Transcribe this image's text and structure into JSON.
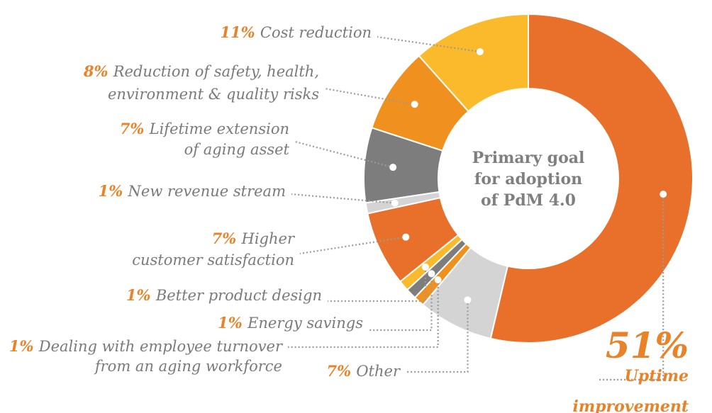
{
  "chart_data": {
    "type": "pie",
    "title": "Primary goal for adoption of PdM 4.0",
    "title_lines": [
      "Primary goal",
      "for adoption",
      "of PdM 4.0"
    ],
    "donut": true,
    "slices": [
      {
        "pct_label": "51%",
        "label_lines": [
          "Uptime",
          "improvement"
        ],
        "value": 51,
        "color": "#e8702a"
      },
      {
        "pct_label": "7%",
        "label_lines": [
          "Other"
        ],
        "value": 7,
        "color": "#d4d4d4"
      },
      {
        "pct_label": "1%",
        "label_lines": [
          "Dealing with employee turnover",
          "from an aging workforce"
        ],
        "value": 1,
        "color": "#f0901e"
      },
      {
        "pct_label": "1%",
        "label_lines": [
          "Energy savings"
        ],
        "value": 1,
        "color": "#7d7d7d"
      },
      {
        "pct_label": "1%",
        "label_lines": [
          "Better product design"
        ],
        "value": 1,
        "color": "#fbba2b"
      },
      {
        "pct_label": "7%",
        "label_lines": [
          "Higher",
          "customer satisfaction"
        ],
        "value": 7,
        "color": "#e8702a"
      },
      {
        "pct_label": "1%",
        "label_lines": [
          "New revenue stream"
        ],
        "value": 1,
        "color": "#d4d4d4"
      },
      {
        "pct_label": "7%",
        "label_lines": [
          "Lifetime extension",
          "of aging asset"
        ],
        "value": 7,
        "color": "#7d7d7d"
      },
      {
        "pct_label": "8%",
        "label_lines": [
          "Reduction of safety, health,",
          "environment & quality risks"
        ],
        "value": 8,
        "color": "#f0901e"
      },
      {
        "pct_label": "11%",
        "label_lines": [
          "Cost reduction"
        ],
        "value": 11,
        "color": "#fbba2b"
      }
    ]
  }
}
